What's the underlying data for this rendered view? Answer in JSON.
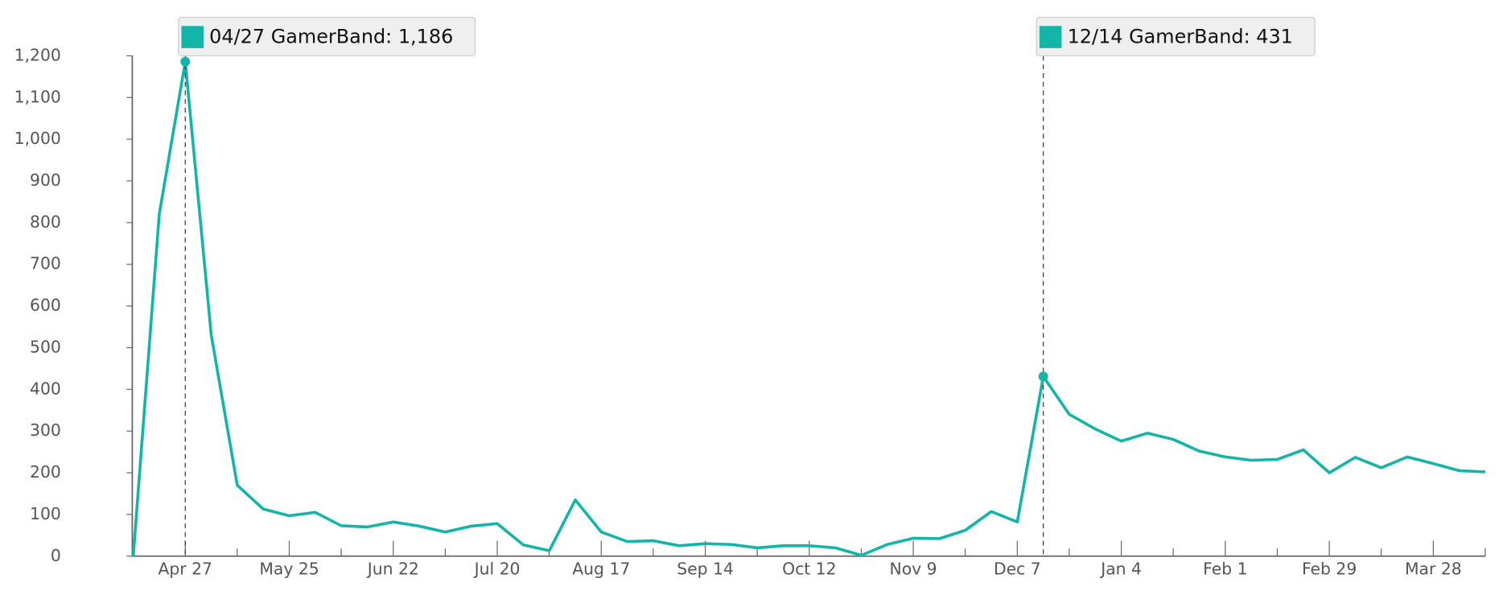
{
  "chart_data": {
    "type": "line",
    "categories": [
      null,
      null,
      "Apr 27",
      null,
      null,
      null,
      "May 25",
      null,
      null,
      null,
      "Jun 22",
      null,
      null,
      null,
      "Jul 20",
      null,
      null,
      null,
      "Aug 17",
      null,
      null,
      null,
      "Sep 14",
      null,
      null,
      null,
      "Oct 12",
      null,
      null,
      null,
      "Nov 9",
      null,
      null,
      null,
      "Dec 7",
      null,
      null,
      null,
      "Jan 4",
      null,
      null,
      null,
      "Feb 1",
      null,
      null,
      null,
      "Feb 29",
      null,
      null,
      null,
      "Mar 28",
      null,
      null
    ],
    "series": [
      {
        "name": "GamerBand",
        "color": "#12b5a8",
        "values": [
          0,
          820,
          1186,
          530,
          170,
          113,
          97,
          105,
          73,
          70,
          82,
          72,
          58,
          72,
          78,
          27,
          13,
          135,
          58,
          35,
          37,
          25,
          30,
          28,
          20,
          25,
          25,
          20,
          2,
          28,
          43,
          42,
          62,
          107,
          82,
          431,
          340,
          305,
          276,
          295,
          280,
          252,
          238,
          230,
          232,
          255,
          200,
          237,
          212,
          238,
          222,
          205,
          202
        ]
      }
    ],
    "ylim": [
      0,
      1200
    ],
    "yticks": [
      0,
      100,
      200,
      300,
      400,
      500,
      600,
      700,
      800,
      900,
      {
        "value": 1000,
        "label": "1,000"
      },
      {
        "value": 1100,
        "label": "1,100"
      },
      {
        "value": 1200,
        "label": "1,200"
      }
    ],
    "annotations": [
      {
        "text": "04/27 GamerBand: 1,186"
      },
      {
        "text": "12/14 GamerBand: 431"
      }
    ]
  }
}
